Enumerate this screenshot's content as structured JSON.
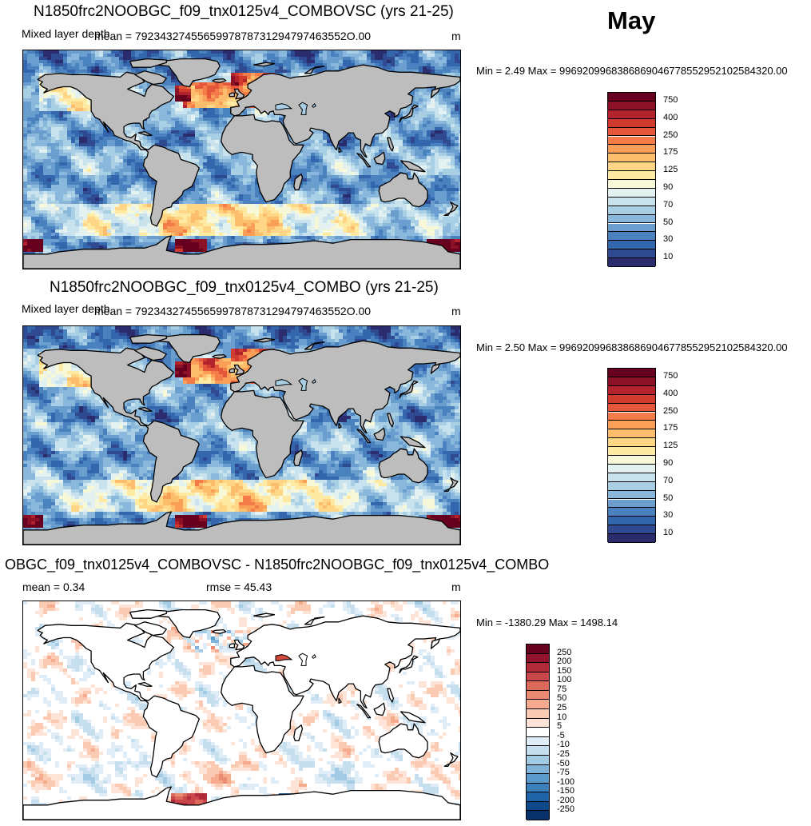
{
  "month": "May",
  "panels": [
    {
      "id": "p1",
      "title": "N1850frc2NOOBGC_f09_tnx0125v4_COMBOVSC (yrs 21-25)",
      "left_label": "Mixed layer depth",
      "center_label": "mean = 7923432745565997878731294797463552O.00",
      "right_label": "m",
      "minmax": "Min =   2.49 Max = 9969209968386869046778552952102584320.00",
      "kind": "field"
    },
    {
      "id": "p2",
      "title": "N1850frc2NOOBGC_f09_tnx0125v4_COMBO (yrs 21-25)",
      "left_label": "Mixed layer depth",
      "center_label": "mean = 7923432745565997878731294797463552O.00",
      "right_label": "m",
      "minmax": "Min =   2.50 Max = 9969209968386869046778552952102584320.00",
      "kind": "field"
    },
    {
      "id": "p3",
      "title": "OBGC_f09_tnx0125v4_COMBOVSC - N1850frc2NOOBGC_f09_tnx0125v4_COMBO",
      "left_label": "mean =   0.34",
      "center_label": "rmse =  45.43",
      "right_label": "m",
      "minmax": "Min = -1380.29 Max = 1498.14",
      "kind": "diff"
    }
  ],
  "chart_data": [
    {
      "type": "heatmap",
      "title": "N1850frc2NOOBGC_f09_tnx0125v4_COMBOVSC (yrs 21-25)",
      "variable": "Mixed layer depth",
      "units": "m",
      "stats": {
        "min": 2.49,
        "max": "9969209968386869046778552952102584320.00"
      },
      "colorbar": {
        "labels": [
          "10",
          "30",
          "50",
          "70",
          "90",
          "125",
          "175",
          "250",
          "400",
          "750"
        ],
        "colors": [
          "#2b2c6e",
          "#2f4a91",
          "#3466ad",
          "#4a82c0",
          "#6a9ecf",
          "#8ab8dc",
          "#a9cfe5",
          "#c8e2ee",
          "#e3f1f1",
          "#f7f8d8",
          "#feeaa2",
          "#fed686",
          "#fcbd6c",
          "#f99f58",
          "#f37c48",
          "#e5573a",
          "#d03a2f",
          "#b2232b",
          "#8a1126",
          "#67001f"
        ]
      }
    },
    {
      "type": "heatmap",
      "title": "N1850frc2NOOBGC_f09_tnx0125v4_COMBO (yrs 21-25)",
      "variable": "Mixed layer depth",
      "units": "m",
      "stats": {
        "min": 2.5,
        "max": "9969209968386869046778552952102584320.00"
      },
      "colorbar": {
        "labels": [
          "10",
          "30",
          "50",
          "70",
          "90",
          "125",
          "175",
          "250",
          "400",
          "750"
        ],
        "colors": [
          "#2b2c6e",
          "#2f4a91",
          "#3466ad",
          "#4a82c0",
          "#6a9ecf",
          "#8ab8dc",
          "#a9cfe5",
          "#c8e2ee",
          "#e3f1f1",
          "#f7f8d8",
          "#feeaa2",
          "#fed686",
          "#fcbd6c",
          "#f99f58",
          "#f37c48",
          "#e5573a",
          "#d03a2f",
          "#b2232b",
          "#8a1126",
          "#67001f"
        ]
      }
    },
    {
      "type": "heatmap",
      "title": "OBGC_f09_tnx0125v4_COMBOVSC - N1850frc2NOOBGC_f09_tnx0125v4_COMBO",
      "units": "m",
      "stats": {
        "mean": 0.34,
        "rmse": 45.43,
        "min": -1380.29,
        "max": 1498.14
      },
      "colorbar": {
        "labels": [
          "-250",
          "-200",
          "-150",
          "-100",
          "-75",
          "-50",
          "-25",
          "-10",
          "-5",
          "5",
          "10",
          "25",
          "50",
          "75",
          "100",
          "150",
          "200",
          "250"
        ],
        "colors": [
          "#08306b",
          "#0d4a8c",
          "#1f63a8",
          "#3b7fbb",
          "#5a9bcb",
          "#7eb4d9",
          "#a4cbe4",
          "#c6dfee",
          "#e1edf6",
          "#ffffff",
          "#fde4d6",
          "#fbcab2",
          "#f6ab8e",
          "#ea8a72",
          "#dc6a5a",
          "#c9474a",
          "#b02a3a",
          "#92132e",
          "#67001f"
        ]
      }
    }
  ]
}
